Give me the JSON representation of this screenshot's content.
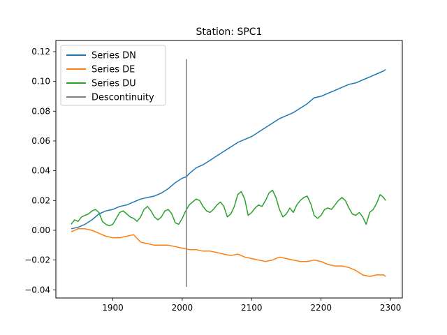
{
  "chart_data": {
    "type": "line",
    "title": "Station: SPC1",
    "xlabel": "",
    "ylabel": "",
    "xlim": [
      1818,
      2317
    ],
    "ylim": [
      -0.0455,
      0.1275
    ],
    "xticks": [
      1900,
      2000,
      2100,
      2200,
      2300
    ],
    "yticks": [
      -0.04,
      -0.02,
      0.0,
      0.02,
      0.04,
      0.06,
      0.08,
      0.1,
      0.12
    ],
    "ytick_labels": [
      "−0.04",
      "−0.02",
      "0.00",
      "0.02",
      "0.04",
      "0.06",
      "0.08",
      "0.10",
      "0.12"
    ],
    "grid": false,
    "legend_position": "top-left",
    "series": [
      {
        "name": "Series DN",
        "color": "#1f77b4",
        "x": [
          1840,
          1850,
          1860,
          1870,
          1880,
          1890,
          1900,
          1910,
          1920,
          1930,
          1940,
          1950,
          1960,
          1970,
          1980,
          1990,
          2000,
          2006,
          2010,
          2020,
          2030,
          2040,
          2050,
          2060,
          2070,
          2080,
          2090,
          2100,
          2110,
          2120,
          2130,
          2140,
          2150,
          2160,
          2170,
          2180,
          2190,
          2200,
          2210,
          2220,
          2230,
          2240,
          2250,
          2260,
          2270,
          2280,
          2290,
          2293
        ],
        "y": [
          0.001,
          0.002,
          0.004,
          0.007,
          0.011,
          0.013,
          0.014,
          0.016,
          0.017,
          0.019,
          0.021,
          0.022,
          0.023,
          0.025,
          0.028,
          0.032,
          0.035,
          0.036,
          0.038,
          0.042,
          0.044,
          0.047,
          0.05,
          0.053,
          0.056,
          0.059,
          0.061,
          0.063,
          0.066,
          0.069,
          0.072,
          0.075,
          0.077,
          0.079,
          0.082,
          0.085,
          0.089,
          0.09,
          0.092,
          0.094,
          0.096,
          0.098,
          0.099,
          0.101,
          0.103,
          0.105,
          0.107,
          0.108
        ]
      },
      {
        "name": "Series DE",
        "color": "#ff7f0e",
        "x": [
          1840,
          1850,
          1860,
          1870,
          1880,
          1890,
          1900,
          1910,
          1920,
          1930,
          1940,
          1950,
          1960,
          1970,
          1980,
          1990,
          2000,
          2010,
          2020,
          2030,
          2040,
          2050,
          2060,
          2070,
          2080,
          2090,
          2100,
          2110,
          2120,
          2130,
          2140,
          2150,
          2160,
          2170,
          2180,
          2190,
          2200,
          2210,
          2220,
          2230,
          2240,
          2250,
          2260,
          2270,
          2280,
          2290,
          2293
        ],
        "y": [
          -0.001,
          0.001,
          0.001,
          0.0,
          -0.002,
          -0.004,
          -0.005,
          -0.005,
          -0.004,
          -0.003,
          -0.008,
          -0.009,
          -0.01,
          -0.01,
          -0.01,
          -0.011,
          -0.012,
          -0.013,
          -0.013,
          -0.014,
          -0.014,
          -0.015,
          -0.016,
          -0.017,
          -0.016,
          -0.018,
          -0.019,
          -0.02,
          -0.021,
          -0.02,
          -0.018,
          -0.019,
          -0.02,
          -0.021,
          -0.021,
          -0.02,
          -0.021,
          -0.023,
          -0.024,
          -0.024,
          -0.025,
          -0.027,
          -0.03,
          -0.031,
          -0.03,
          -0.03,
          -0.031
        ]
      },
      {
        "name": "Series DU",
        "color": "#2ca02c",
        "x": [
          1840,
          1845,
          1850,
          1855,
          1860,
          1865,
          1870,
          1875,
          1880,
          1885,
          1890,
          1895,
          1900,
          1905,
          1910,
          1915,
          1920,
          1925,
          1930,
          1935,
          1940,
          1945,
          1950,
          1955,
          1960,
          1965,
          1970,
          1975,
          1980,
          1985,
          1990,
          1995,
          2000,
          2005,
          2010,
          2015,
          2020,
          2025,
          2030,
          2035,
          2040,
          2045,
          2050,
          2055,
          2060,
          2065,
          2070,
          2075,
          2080,
          2085,
          2090,
          2095,
          2100,
          2105,
          2110,
          2115,
          2120,
          2125,
          2130,
          2135,
          2140,
          2145,
          2150,
          2155,
          2160,
          2165,
          2170,
          2175,
          2180,
          2185,
          2190,
          2195,
          2200,
          2205,
          2210,
          2215,
          2220,
          2225,
          2230,
          2235,
          2240,
          2245,
          2250,
          2255,
          2260,
          2265,
          2270,
          2275,
          2280,
          2285,
          2290,
          2293
        ],
        "y": [
          0.004,
          0.007,
          0.006,
          0.009,
          0.01,
          0.011,
          0.013,
          0.014,
          0.012,
          0.006,
          0.004,
          0.003,
          0.004,
          0.008,
          0.012,
          0.013,
          0.011,
          0.009,
          0.008,
          0.006,
          0.009,
          0.014,
          0.016,
          0.013,
          0.009,
          0.007,
          0.009,
          0.013,
          0.014,
          0.011,
          0.005,
          0.004,
          0.008,
          0.013,
          0.017,
          0.019,
          0.021,
          0.02,
          0.016,
          0.013,
          0.012,
          0.014,
          0.017,
          0.019,
          0.016,
          0.009,
          0.011,
          0.016,
          0.024,
          0.026,
          0.021,
          0.01,
          0.012,
          0.015,
          0.017,
          0.016,
          0.02,
          0.025,
          0.027,
          0.022,
          0.014,
          0.009,
          0.011,
          0.015,
          0.012,
          0.017,
          0.02,
          0.022,
          0.023,
          0.018,
          0.01,
          0.008,
          0.01,
          0.014,
          0.015,
          0.014,
          0.017,
          0.02,
          0.022,
          0.02,
          0.015,
          0.011,
          0.01,
          0.012,
          0.009,
          0.004,
          0.012,
          0.014,
          0.018,
          0.024,
          0.022,
          0.02
        ]
      },
      {
        "name": "Descontinuity",
        "color": "#808080",
        "x": [
          2006,
          2006
        ],
        "y": [
          -0.038,
          0.115
        ]
      }
    ]
  }
}
